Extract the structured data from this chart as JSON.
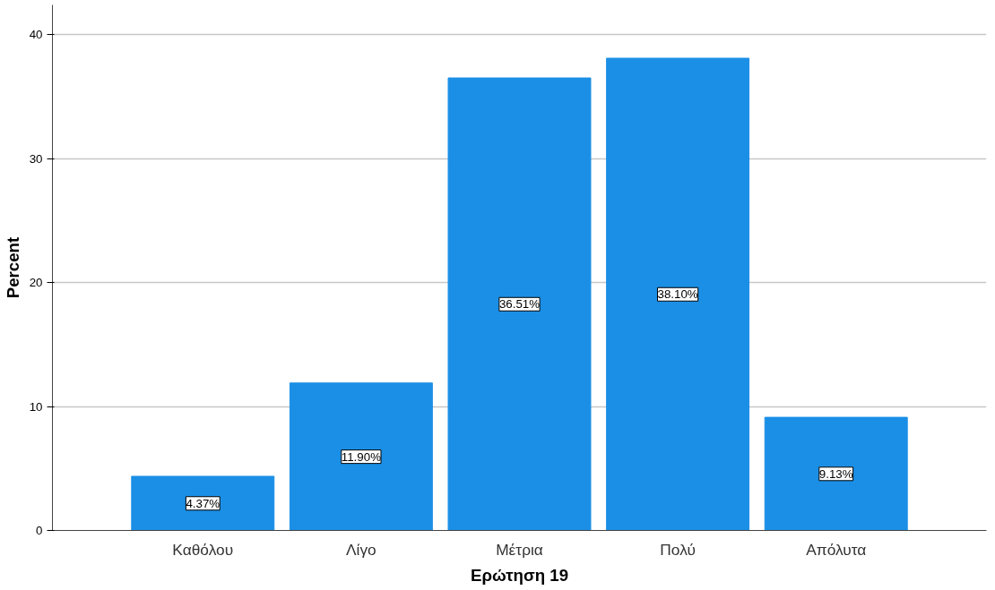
{
  "chart_data": {
    "type": "bar",
    "xlabel": "Ερώτηση 19",
    "ylabel": "Percent",
    "categories": [
      "Καθόλου",
      "Λίγο",
      "Μέτρια",
      "Πολύ",
      "Απόλυτα"
    ],
    "values": [
      4.37,
      11.9,
      36.51,
      38.1,
      9.13
    ],
    "value_labels": [
      "4.37%",
      "11.90%",
      "36.51%",
      "38.10%",
      "9.13%"
    ],
    "color": "#1b8fe6",
    "ylim": [
      0,
      42.4
    ],
    "yticks": [
      0,
      10,
      20,
      30,
      40
    ],
    "grid": "y"
  }
}
